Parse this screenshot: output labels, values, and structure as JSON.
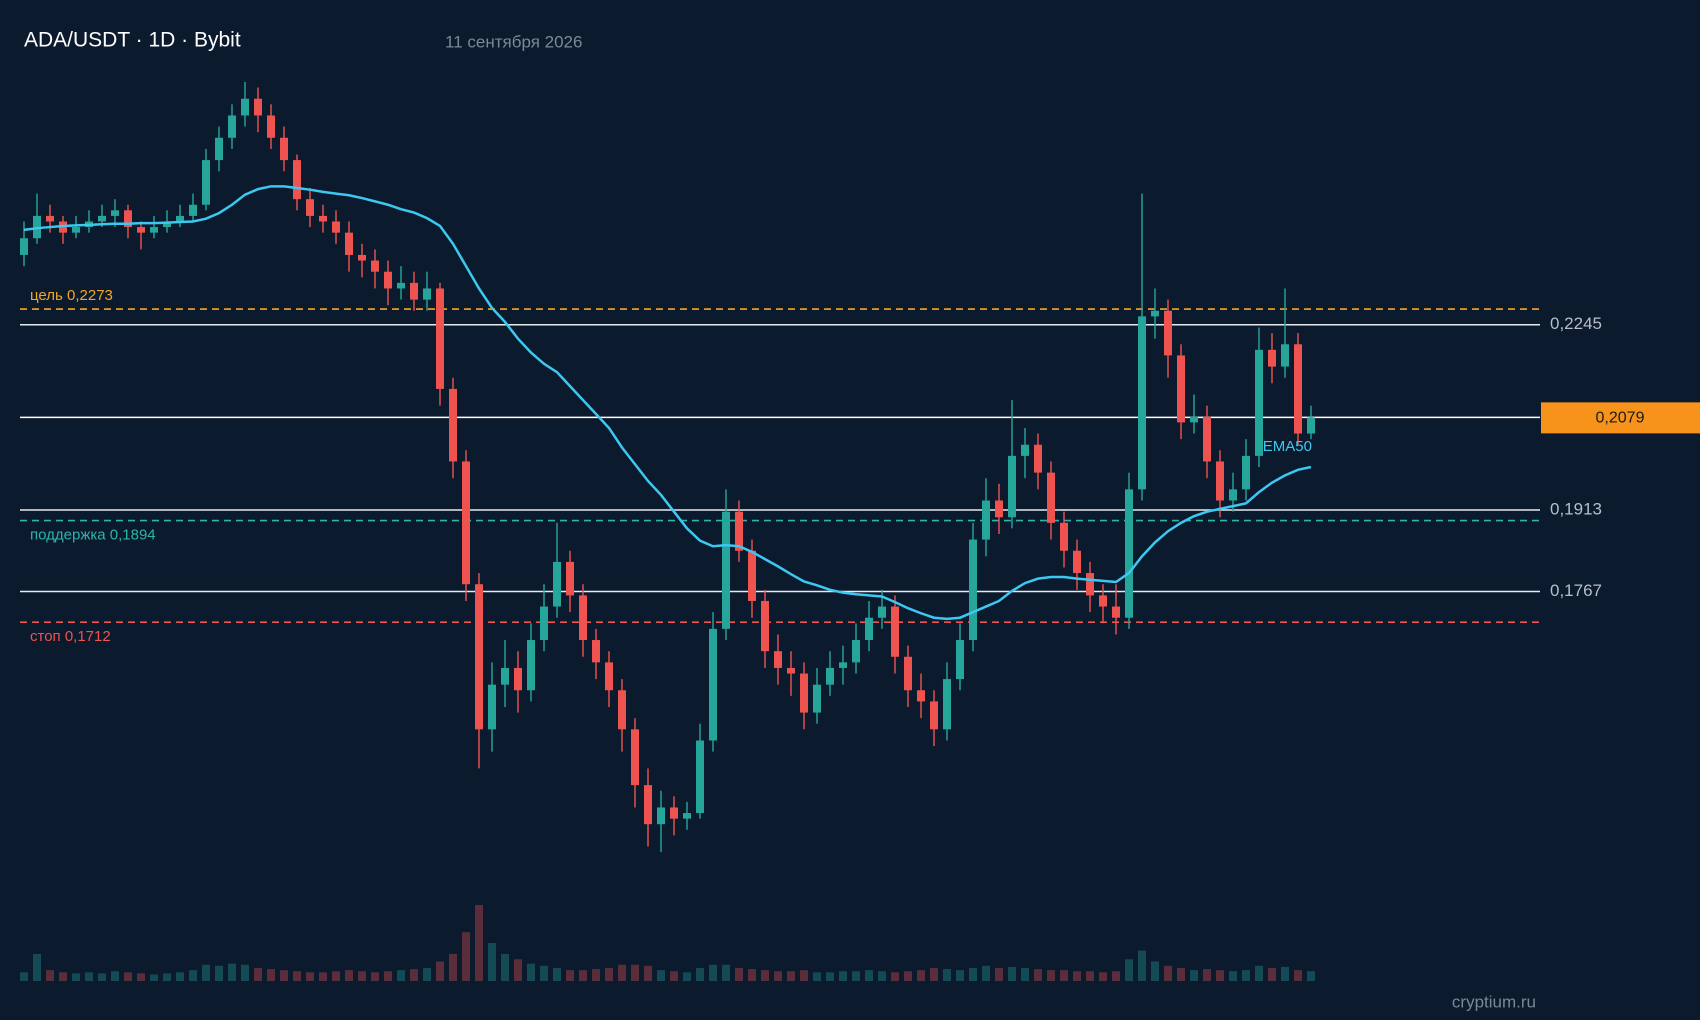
{
  "chart_data": {
    "type": "candlestick",
    "title": "ADA/USDT · 1D · Bybit",
    "subtitle": "11 сентября 2026",
    "watermark": "cryptium.ru",
    "ylim": [
      0.125,
      0.28
    ],
    "vlim": [
      0,
      70
    ],
    "up_color": "#26a69a",
    "down_color": "#ef5350",
    "ohlc": [
      [
        0.237,
        0.243,
        0.235,
        0.24
      ],
      [
        0.24,
        0.248,
        0.239,
        0.244
      ],
      [
        0.244,
        0.246,
        0.241,
        0.243
      ],
      [
        0.243,
        0.244,
        0.239,
        0.241
      ],
      [
        0.241,
        0.244,
        0.24,
        0.242
      ],
      [
        0.242,
        0.245,
        0.241,
        0.243
      ],
      [
        0.243,
        0.246,
        0.242,
        0.244
      ],
      [
        0.244,
        0.247,
        0.242,
        0.245
      ],
      [
        0.245,
        0.246,
        0.24,
        0.242
      ],
      [
        0.242,
        0.243,
        0.238,
        0.241
      ],
      [
        0.241,
        0.244,
        0.24,
        0.242
      ],
      [
        0.242,
        0.245,
        0.241,
        0.243
      ],
      [
        0.243,
        0.246,
        0.242,
        0.244
      ],
      [
        0.244,
        0.248,
        0.243,
        0.246
      ],
      [
        0.246,
        0.256,
        0.245,
        0.254
      ],
      [
        0.254,
        0.26,
        0.252,
        0.258
      ],
      [
        0.258,
        0.264,
        0.256,
        0.262
      ],
      [
        0.262,
        0.268,
        0.26,
        0.265
      ],
      [
        0.265,
        0.267,
        0.259,
        0.262
      ],
      [
        0.262,
        0.264,
        0.256,
        0.258
      ],
      [
        0.258,
        0.26,
        0.252,
        0.254
      ],
      [
        0.254,
        0.255,
        0.245,
        0.247
      ],
      [
        0.247,
        0.249,
        0.242,
        0.244
      ],
      [
        0.244,
        0.246,
        0.241,
        0.243
      ],
      [
        0.243,
        0.245,
        0.239,
        0.241
      ],
      [
        0.241,
        0.243,
        0.234,
        0.237
      ],
      [
        0.237,
        0.239,
        0.233,
        0.236
      ],
      [
        0.236,
        0.238,
        0.231,
        0.234
      ],
      [
        0.234,
        0.236,
        0.228,
        0.231
      ],
      [
        0.231,
        0.235,
        0.229,
        0.232
      ],
      [
        0.232,
        0.234,
        0.227,
        0.229
      ],
      [
        0.229,
        0.234,
        0.227,
        0.231
      ],
      [
        0.231,
        0.232,
        0.21,
        0.213
      ],
      [
        0.213,
        0.215,
        0.197,
        0.2
      ],
      [
        0.2,
        0.202,
        0.175,
        0.178
      ],
      [
        0.178,
        0.18,
        0.145,
        0.152
      ],
      [
        0.152,
        0.164,
        0.148,
        0.16
      ],
      [
        0.16,
        0.168,
        0.156,
        0.163
      ],
      [
        0.163,
        0.166,
        0.155,
        0.159
      ],
      [
        0.159,
        0.171,
        0.157,
        0.168
      ],
      [
        0.168,
        0.178,
        0.166,
        0.174
      ],
      [
        0.174,
        0.189,
        0.172,
        0.182
      ],
      [
        0.182,
        0.184,
        0.173,
        0.176
      ],
      [
        0.176,
        0.178,
        0.165,
        0.168
      ],
      [
        0.168,
        0.17,
        0.161,
        0.164
      ],
      [
        0.164,
        0.166,
        0.156,
        0.159
      ],
      [
        0.159,
        0.161,
        0.148,
        0.152
      ],
      [
        0.152,
        0.154,
        0.138,
        0.142
      ],
      [
        0.142,
        0.145,
        0.131,
        0.135
      ],
      [
        0.135,
        0.141,
        0.13,
        0.138
      ],
      [
        0.138,
        0.14,
        0.133,
        0.136
      ],
      [
        0.136,
        0.139,
        0.134,
        0.137
      ],
      [
        0.137,
        0.153,
        0.136,
        0.15
      ],
      [
        0.15,
        0.173,
        0.148,
        0.17
      ],
      [
        0.17,
        0.195,
        0.168,
        0.191
      ],
      [
        0.191,
        0.193,
        0.182,
        0.184
      ],
      [
        0.184,
        0.186,
        0.172,
        0.175
      ],
      [
        0.175,
        0.177,
        0.163,
        0.166
      ],
      [
        0.166,
        0.169,
        0.16,
        0.163
      ],
      [
        0.163,
        0.166,
        0.158,
        0.162
      ],
      [
        0.162,
        0.164,
        0.152,
        0.155
      ],
      [
        0.155,
        0.163,
        0.153,
        0.16
      ],
      [
        0.16,
        0.166,
        0.158,
        0.163
      ],
      [
        0.163,
        0.167,
        0.16,
        0.164
      ],
      [
        0.164,
        0.171,
        0.162,
        0.168
      ],
      [
        0.168,
        0.175,
        0.166,
        0.172
      ],
      [
        0.172,
        0.177,
        0.17,
        0.174
      ],
      [
        0.174,
        0.176,
        0.162,
        0.165
      ],
      [
        0.165,
        0.167,
        0.156,
        0.159
      ],
      [
        0.159,
        0.162,
        0.154,
        0.157
      ],
      [
        0.157,
        0.159,
        0.149,
        0.152
      ],
      [
        0.152,
        0.164,
        0.15,
        0.161
      ],
      [
        0.161,
        0.171,
        0.159,
        0.168
      ],
      [
        0.168,
        0.189,
        0.166,
        0.186
      ],
      [
        0.186,
        0.197,
        0.183,
        0.193
      ],
      [
        0.193,
        0.196,
        0.187,
        0.19
      ],
      [
        0.19,
        0.211,
        0.188,
        0.201
      ],
      [
        0.201,
        0.206,
        0.197,
        0.203
      ],
      [
        0.203,
        0.205,
        0.195,
        0.198
      ],
      [
        0.198,
        0.2,
        0.186,
        0.189
      ],
      [
        0.189,
        0.191,
        0.181,
        0.184
      ],
      [
        0.184,
        0.186,
        0.177,
        0.18
      ],
      [
        0.18,
        0.182,
        0.173,
        0.176
      ],
      [
        0.176,
        0.178,
        0.171,
        0.174
      ],
      [
        0.174,
        0.178,
        0.169,
        0.172
      ],
      [
        0.172,
        0.198,
        0.17,
        0.195
      ],
      [
        0.195,
        0.248,
        0.193,
        0.226
      ],
      [
        0.226,
        0.231,
        0.222,
        0.227
      ],
      [
        0.227,
        0.229,
        0.215,
        0.219
      ],
      [
        0.219,
        0.221,
        0.204,
        0.207
      ],
      [
        0.207,
        0.212,
        0.205,
        0.208
      ],
      [
        0.208,
        0.21,
        0.197,
        0.2
      ],
      [
        0.2,
        0.202,
        0.19,
        0.193
      ],
      [
        0.193,
        0.198,
        0.191,
        0.195
      ],
      [
        0.195,
        0.204,
        0.193,
        0.201
      ],
      [
        0.201,
        0.224,
        0.199,
        0.22
      ],
      [
        0.22,
        0.223,
        0.214,
        0.217
      ],
      [
        0.217,
        0.231,
        0.215,
        0.221
      ],
      [
        0.221,
        0.223,
        0.203,
        0.205
      ],
      [
        0.205,
        0.21,
        0.204,
        0.2079
      ]
    ],
    "volume": [
      8,
      25,
      10,
      8,
      7,
      8,
      7,
      9,
      8,
      7,
      6,
      7,
      8,
      10,
      15,
      14,
      16,
      15,
      12,
      11,
      10,
      9,
      8,
      8,
      9,
      10,
      9,
      8,
      9,
      10,
      11,
      12,
      18,
      25,
      45,
      70,
      35,
      25,
      20,
      16,
      14,
      12,
      10,
      10,
      11,
      12,
      15,
      15,
      14,
      10,
      9,
      8,
      12,
      15,
      15,
      12,
      11,
      10,
      9,
      9,
      10,
      8,
      8,
      9,
      9,
      10,
      9,
      8,
      9,
      10,
      12,
      11,
      10,
      12,
      14,
      12,
      13,
      12,
      11,
      10,
      10,
      9,
      9,
      8,
      9,
      20,
      28,
      18,
      14,
      12,
      10,
      11,
      10,
      9,
      10,
      14,
      12,
      13,
      10,
      9
    ],
    "ema": {
      "name": "EMA50",
      "color": "#3cc8f0",
      "values": [
        0.2415,
        0.2418,
        0.242,
        0.2422,
        0.2423,
        0.2424,
        0.2425,
        0.2426,
        0.2426,
        0.2427,
        0.2427,
        0.2428,
        0.2429,
        0.243,
        0.2435,
        0.2445,
        0.246,
        0.2478,
        0.2488,
        0.2493,
        0.2493,
        0.249,
        0.2487,
        0.2483,
        0.248,
        0.2477,
        0.2472,
        0.2466,
        0.246,
        0.2452,
        0.2446,
        0.2436,
        0.2422,
        0.239,
        0.235,
        0.231,
        0.2275,
        0.225,
        0.222,
        0.2195,
        0.2175,
        0.216,
        0.2135,
        0.211,
        0.2085,
        0.206,
        0.2025,
        0.1995,
        0.1965,
        0.194,
        0.191,
        0.188,
        0.1858,
        0.1848,
        0.185,
        0.1848,
        0.1838,
        0.1825,
        0.1812,
        0.1798,
        0.1785,
        0.1778,
        0.177,
        0.1765,
        0.1762,
        0.176,
        0.1758,
        0.1748,
        0.1737,
        0.1728,
        0.172,
        0.1718,
        0.172,
        0.173,
        0.174,
        0.175,
        0.1768,
        0.1782,
        0.179,
        0.1793,
        0.1793,
        0.179,
        0.1788,
        0.1786,
        0.1784,
        0.18,
        0.183,
        0.1855,
        0.1875,
        0.189,
        0.1902,
        0.191,
        0.1915,
        0.192,
        0.1925,
        0.1945,
        0.1962,
        0.1975,
        0.1985,
        0.199
      ]
    },
    "levels": [
      {
        "value": 0.2273,
        "label": "цель 0,2273",
        "color": "#f5a623"
      },
      {
        "value": 0.1894,
        "label": "поддержка 0,1894",
        "color": "#2bb5a8"
      },
      {
        "value": 0.1712,
        "label": "стоп 0,1712",
        "color": "#ef5350"
      }
    ],
    "price_lines": [
      {
        "value": 0.2245,
        "label": "0,2245"
      },
      {
        "value": 0.1913,
        "label": "0,1913"
      },
      {
        "value": 0.1767,
        "label": "0,1767"
      }
    ],
    "current": {
      "value": 0.2079,
      "label": "0,2079",
      "color": "#f7931a"
    }
  }
}
